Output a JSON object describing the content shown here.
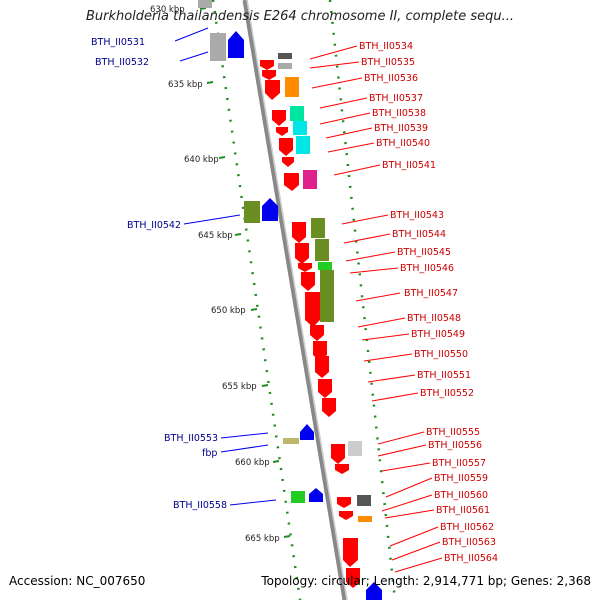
{
  "title": "Burkholderia thailandensis E264 chromosome II, complete sequ...",
  "accession": "Accession: NC_007650",
  "summary": "Topology: circular; Length: 2,914,771 bp; Genes: 2,368",
  "scale_labels": [
    "630 kbp",
    "635 kbp",
    "640 kbp",
    "645 kbp",
    "650 kbp",
    "655 kbp",
    "660 kbp",
    "665 kbp"
  ],
  "right_labels": [
    "BTH_II0534",
    "BTH_II0535",
    "BTH_II0536",
    "BTH_II0537",
    "BTH_II0538",
    "BTH_II0539",
    "BTH_II0540",
    "BTH_II0541",
    "BTH_II0543",
    "BTH_II0544",
    "BTH_II0545",
    "BTH_II0546",
    "BTH_II0547",
    "BTH_II0548",
    "BTH_II0549",
    "BTH_II0550",
    "BTH_II0551",
    "BTH_II0552",
    "BTH_II0555",
    "BTH_II0556",
    "BTH_II0557",
    "BTH_II0559",
    "BTH_II0560",
    "BTH_II0561",
    "BTH_II0562",
    "BTH_II0563",
    "BTH_II0564"
  ],
  "left_labels": [
    "BTH_II0531",
    "BTH_II0532",
    "BTH_II0542",
    "BTH_II0553",
    "fbp",
    "BTH_II0558"
  ],
  "colors": {
    "red": "#ff0000",
    "blue": "#0000ee",
    "olive": "#6b8e23",
    "gray": "#aaaaaa",
    "orange": "#ff8c00",
    "cyan": "#00e5e5",
    "magenta": "#e0208c",
    "green": "#22cc22",
    "label_red": "#cc0000",
    "label_blue": "#00008b"
  }
}
